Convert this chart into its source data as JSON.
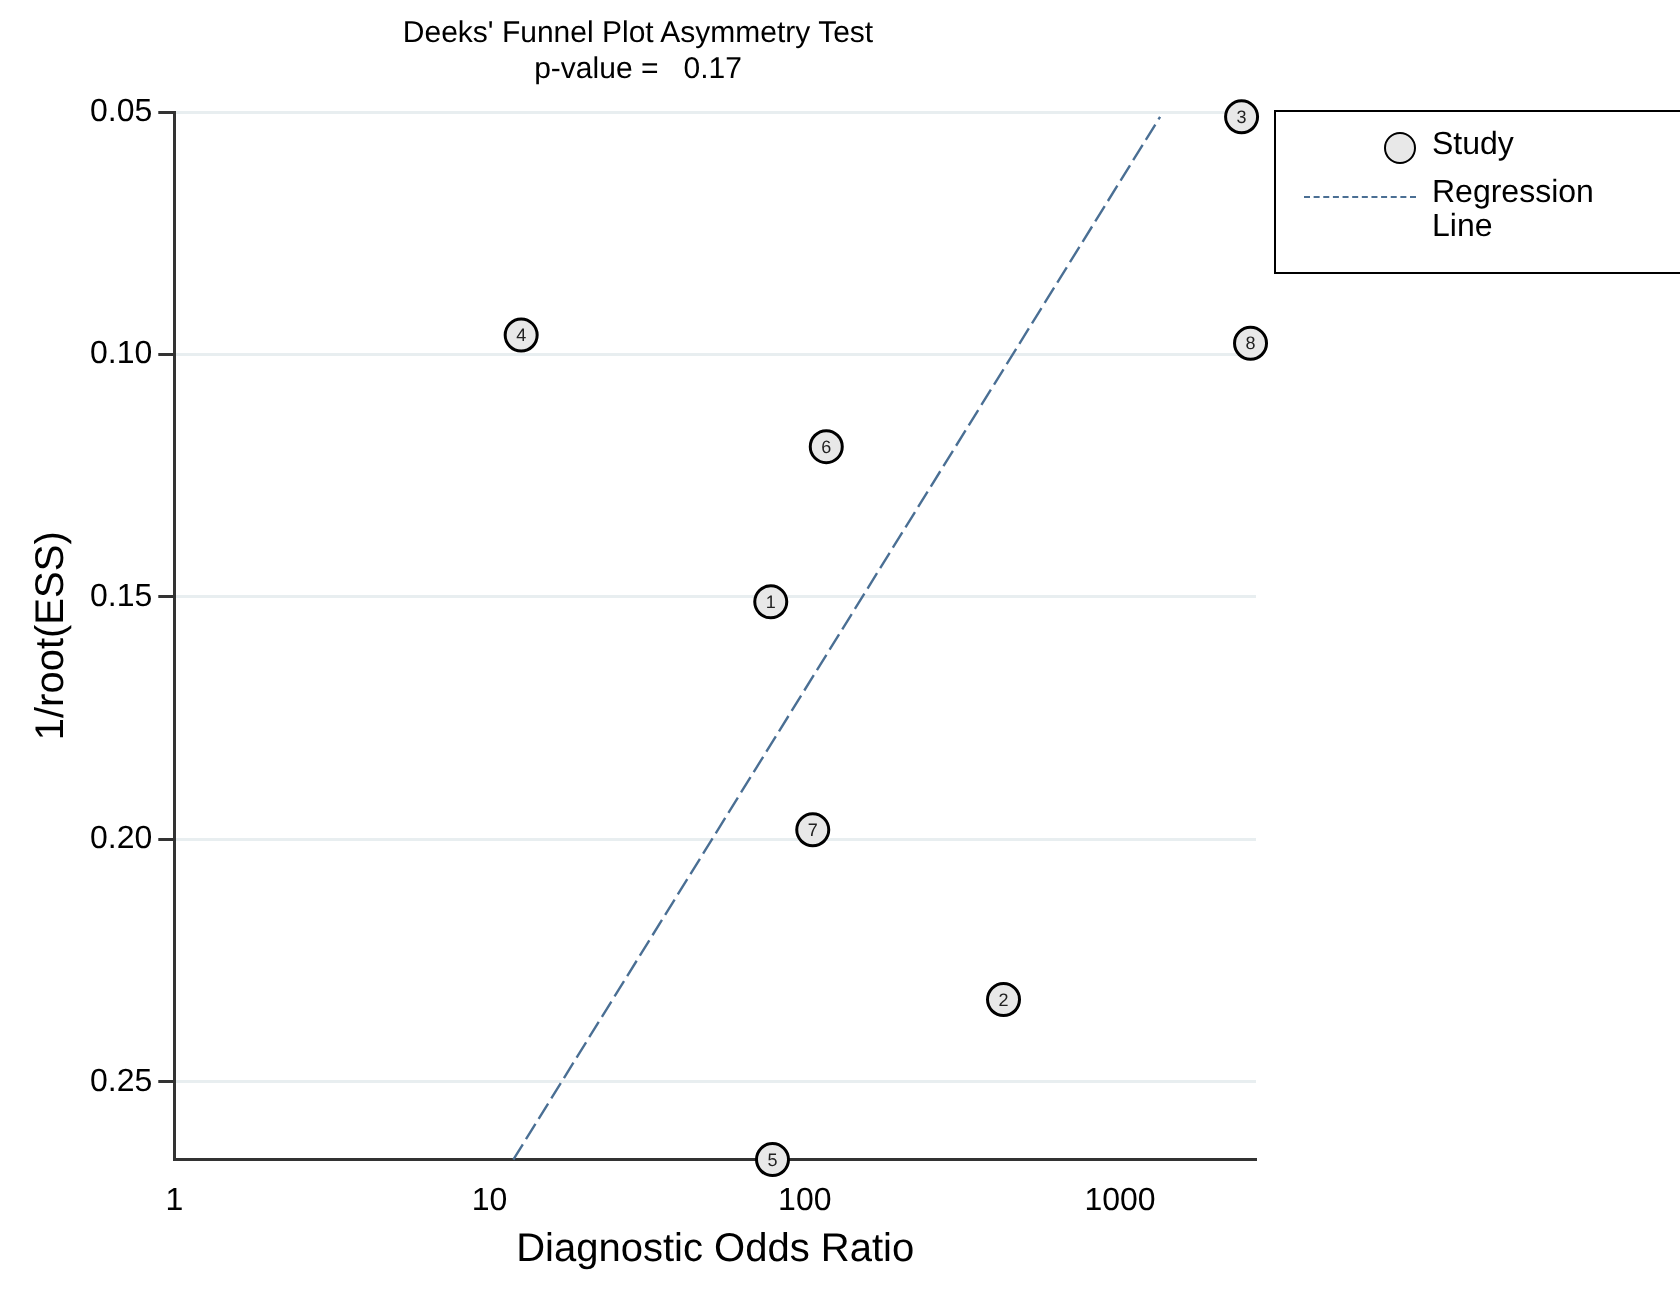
{
  "chart_data": {
    "type": "scatter",
    "title": "Deeks' Funnel Plot Asymmetry Test",
    "subtitle": "p-value =   0.17",
    "xlabel": "Diagnostic Odds Ratio",
    "ylabel": "1/root(ESS)",
    "series": [
      {
        "name": "Study",
        "color": "#e8e8e8",
        "marker": "circle",
        "x": [
          78,
          427,
          2430,
          12.6,
          79,
          117,
          106,
          2594
        ],
        "values": [
          0.151,
          0.233,
          0.051,
          0.096,
          0.266,
          0.119,
          0.198,
          0.0977
        ]
      },
      {
        "name": "Regression Line",
        "type": "line",
        "color": "#4a6f94",
        "line_style": "dashed",
        "marker": "none",
        "x": [
          11.9,
          1340
        ],
        "values": [
          0.266,
          0.051
        ]
      }
    ],
    "annotations": [
      {
        "text": "1",
        "x": 78,
        "y": 0.151
      },
      {
        "text": "2",
        "x": 427,
        "y": 0.233
      },
      {
        "text": "3",
        "x": 2430,
        "y": 0.051
      },
      {
        "text": "4",
        "x": 12.6,
        "y": 0.096
      },
      {
        "text": "5",
        "x": 79,
        "y": 0.266
      },
      {
        "text": "6",
        "x": 117,
        "y": 0.119
      },
      {
        "text": "7",
        "x": 106,
        "y": 0.198
      },
      {
        "text": "8",
        "x": 2594,
        "y": 0.0977
      }
    ],
    "log": "x",
    "xlim": [
      1,
      2700
    ],
    "xticks": [
      1,
      10,
      100,
      1000
    ],
    "ylim": [
      0.266,
      0.05
    ],
    "yticks": [
      0.05,
      {
        "value": 0.1,
        "label": "0.10"
      },
      0.15,
      {
        "value": 0.2,
        "label": "0.20"
      },
      0.25
    ],
    "grid": "y",
    "legend": "top right"
  }
}
